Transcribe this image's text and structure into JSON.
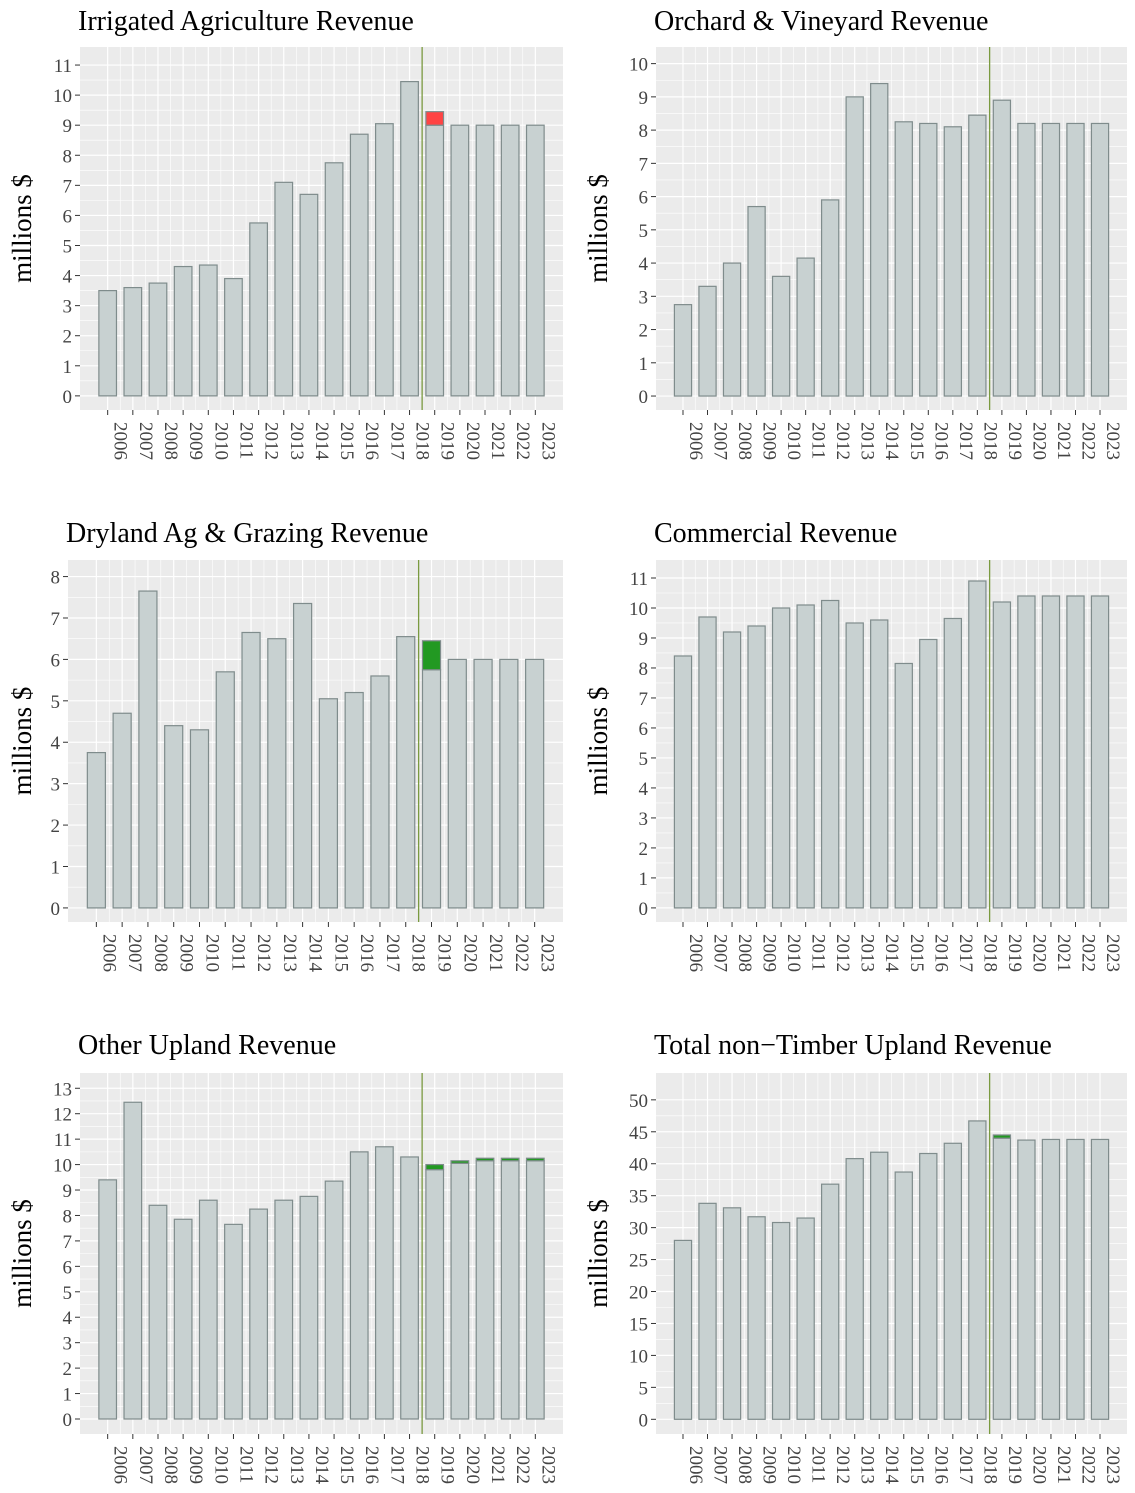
{
  "chart_data": [
    {
      "type": "bar",
      "title": "Irrigated Agriculture Revenue",
      "y_label": "millions $",
      "categories": [
        "2006",
        "2007",
        "2008",
        "2009",
        "2010",
        "2011",
        "2012",
        "2013",
        "2014",
        "2015",
        "2016",
        "2017",
        "2018",
        "2019",
        "2020",
        "2021",
        "2022",
        "2023"
      ],
      "series": [
        {
          "color": "#c8d1d1",
          "values": [
            3.5,
            3.6,
            3.75,
            4.3,
            4.35,
            3.9,
            5.75,
            7.1,
            6.7,
            7.75,
            8.7,
            9.05,
            10.45,
            9.0,
            9.0,
            9.0,
            9.0,
            9.0
          ]
        },
        {
          "color": "#ff4444",
          "values": [
            null,
            null,
            null,
            null,
            null,
            null,
            null,
            null,
            null,
            null,
            null,
            null,
            null,
            0.45,
            null,
            null,
            null,
            null
          ]
        }
      ],
      "ylim": [
        -0.47,
        11.6
      ],
      "yticks": [
        0,
        1,
        2,
        3,
        4,
        5,
        6,
        7,
        8,
        9,
        10,
        11
      ],
      "grid": true,
      "vline_after": "2018"
    },
    {
      "type": "bar",
      "title": "Orchard & Vineyard Revenue",
      "y_label": "millions $",
      "categories": [
        "2006",
        "2007",
        "2008",
        "2009",
        "2010",
        "2011",
        "2012",
        "2013",
        "2014",
        "2015",
        "2016",
        "2017",
        "2018",
        "2019",
        "2020",
        "2021",
        "2022",
        "2023"
      ],
      "series": [
        {
          "color": "#c8d1d1",
          "values": [
            2.75,
            3.3,
            4.0,
            5.7,
            3.6,
            4.15,
            5.9,
            9.0,
            9.4,
            8.25,
            8.2,
            8.1,
            8.45,
            8.9,
            8.2,
            8.2,
            8.2,
            8.2
          ]
        }
      ],
      "ylim": [
        -0.42,
        10.5
      ],
      "yticks": [
        0,
        1,
        2,
        3,
        4,
        5,
        6,
        7,
        8,
        9,
        10
      ],
      "grid": true,
      "vline_after": "2018"
    },
    {
      "type": "bar",
      "title": "Dryland Ag & Grazing Revenue",
      "y_label": "millions $",
      "categories": [
        "2006",
        "2007",
        "2008",
        "2009",
        "2010",
        "2011",
        "2012",
        "2013",
        "2014",
        "2015",
        "2016",
        "2017",
        "2018",
        "2019",
        "2020",
        "2021",
        "2022",
        "2023"
      ],
      "series": [
        {
          "color": "#c8d1d1",
          "values": [
            3.75,
            4.7,
            7.65,
            4.4,
            4.3,
            5.7,
            6.65,
            6.5,
            7.35,
            5.05,
            5.2,
            5.6,
            6.55,
            5.75,
            6.0,
            6.0,
            6.0,
            6.0
          ]
        },
        {
          "color": "#229922",
          "values": [
            null,
            null,
            null,
            null,
            null,
            null,
            null,
            null,
            null,
            null,
            null,
            null,
            null,
            0.7,
            null,
            null,
            null,
            null
          ]
        }
      ],
      "ylim": [
        -0.34,
        8.4
      ],
      "yticks": [
        0,
        1,
        2,
        3,
        4,
        5,
        6,
        7,
        8
      ],
      "grid": true,
      "vline_after": "2018"
    },
    {
      "type": "bar",
      "title": "Commercial Revenue",
      "y_label": "millions $",
      "categories": [
        "2006",
        "2007",
        "2008",
        "2009",
        "2010",
        "2011",
        "2012",
        "2013",
        "2014",
        "2015",
        "2016",
        "2017",
        "2018",
        "2019",
        "2020",
        "2021",
        "2022",
        "2023"
      ],
      "series": [
        {
          "color": "#c8d1d1",
          "values": [
            8.4,
            9.7,
            9.2,
            9.4,
            10.0,
            10.1,
            10.25,
            9.5,
            9.6,
            8.15,
            8.95,
            9.65,
            10.9,
            10.2,
            10.4,
            10.4,
            10.4,
            10.4
          ]
        }
      ],
      "ylim": [
        -0.47,
        11.6
      ],
      "yticks": [
        0,
        1,
        2,
        3,
        4,
        5,
        6,
        7,
        8,
        9,
        10,
        11
      ],
      "grid": true,
      "vline_after": "2018"
    },
    {
      "type": "bar",
      "title": "Other Upland Revenue",
      "y_label": "millions $",
      "categories": [
        "2006",
        "2007",
        "2008",
        "2009",
        "2010",
        "2011",
        "2012",
        "2013",
        "2014",
        "2015",
        "2016",
        "2017",
        "2018",
        "2019",
        "2020",
        "2021",
        "2022",
        "2023"
      ],
      "series": [
        {
          "color": "#c8d1d1",
          "values": [
            9.4,
            12.45,
            8.4,
            7.85,
            8.6,
            7.65,
            8.25,
            8.6,
            8.75,
            9.35,
            10.5,
            10.7,
            10.3,
            9.8,
            10.05,
            10.15,
            10.15,
            10.15
          ]
        },
        {
          "color": "#229922",
          "values": [
            null,
            null,
            null,
            null,
            null,
            null,
            null,
            null,
            null,
            null,
            null,
            null,
            null,
            0.2,
            0.1,
            0.1,
            0.1,
            0.1
          ]
        }
      ],
      "ylim": [
        -0.59,
        13.6
      ],
      "yticks": [
        0,
        1,
        2,
        3,
        4,
        5,
        6,
        7,
        8,
        9,
        10,
        11,
        12,
        13
      ],
      "grid": true,
      "vline_after": "2018"
    },
    {
      "type": "bar",
      "title": "Total non−Timber Upland Revenue",
      "y_label": "millions $",
      "categories": [
        "2006",
        "2007",
        "2008",
        "2009",
        "2010",
        "2011",
        "2012",
        "2013",
        "2014",
        "2015",
        "2016",
        "2017",
        "2018",
        "2019",
        "2020",
        "2021",
        "2022",
        "2023"
      ],
      "series": [
        {
          "color": "#c8d1d1",
          "values": [
            28,
            33.8,
            33.1,
            31.7,
            30.8,
            31.5,
            36.8,
            40.8,
            41.8,
            38.7,
            41.6,
            43.2,
            46.7,
            44.0,
            43.7,
            43.8,
            43.8,
            43.8
          ]
        },
        {
          "color": "#229922",
          "values": [
            null,
            null,
            null,
            null,
            null,
            null,
            null,
            null,
            null,
            null,
            null,
            null,
            null,
            0.5,
            null,
            null,
            null,
            null
          ]
        }
      ],
      "ylim": [
        -2.3,
        54.2
      ],
      "yticks": [
        0,
        5,
        10,
        15,
        20,
        25,
        30,
        35,
        40,
        45,
        50
      ],
      "grid": true,
      "vline_after": "2018"
    }
  ]
}
